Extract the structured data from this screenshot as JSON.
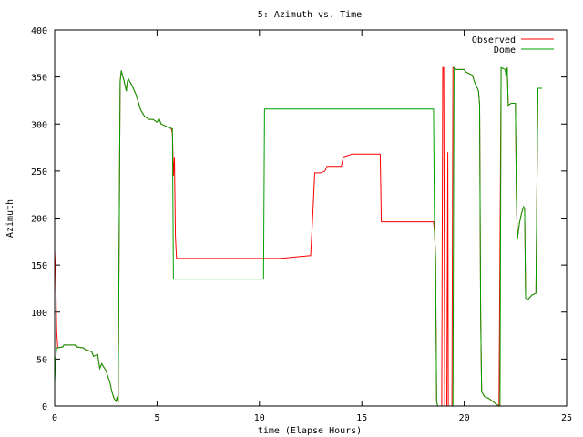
{
  "chart_data": {
    "type": "line",
    "title": "5: Azimuth vs. Time",
    "xlabel": "time (Elapse Hours)",
    "ylabel": "Azimuth",
    "xlim": [
      0,
      25
    ],
    "ylim": [
      0,
      400
    ],
    "xticks": [
      0,
      5,
      10,
      15,
      20,
      25
    ],
    "yticks": [
      0,
      50,
      100,
      150,
      200,
      250,
      300,
      350,
      400
    ],
    "grid": false,
    "legend_position": "top-right",
    "series": [
      {
        "name": "Observed",
        "color": "#ff0000",
        "points": [
          [
            0.0,
            165
          ],
          [
            0.05,
            140
          ],
          [
            0.1,
            80
          ],
          [
            0.15,
            62
          ],
          [
            0.4,
            63
          ],
          [
            0.45,
            65
          ],
          [
            1.0,
            65
          ],
          [
            1.05,
            63
          ],
          [
            1.4,
            62
          ],
          [
            1.5,
            60
          ],
          [
            1.8,
            58
          ],
          [
            1.9,
            53
          ],
          [
            2.1,
            55
          ],
          [
            2.2,
            40
          ],
          [
            2.3,
            45
          ],
          [
            2.5,
            38
          ],
          [
            2.7,
            25
          ],
          [
            2.8,
            15
          ],
          [
            2.9,
            8
          ],
          [
            3.0,
            5
          ],
          [
            3.05,
            10
          ],
          [
            3.1,
            3
          ],
          [
            3.2,
            345
          ],
          [
            3.25,
            357
          ],
          [
            3.4,
            345
          ],
          [
            3.5,
            335
          ],
          [
            3.55,
            345
          ],
          [
            3.6,
            348
          ],
          [
            3.8,
            340
          ],
          [
            4.0,
            330
          ],
          [
            4.2,
            315
          ],
          [
            4.4,
            308
          ],
          [
            4.6,
            305
          ],
          [
            4.8,
            305
          ],
          [
            5.0,
            302
          ],
          [
            5.1,
            306
          ],
          [
            5.2,
            300
          ],
          [
            5.4,
            298
          ],
          [
            5.6,
            296
          ],
          [
            5.7,
            295
          ],
          [
            5.75,
            290
          ],
          [
            5.8,
            245
          ],
          [
            5.85,
            265
          ],
          [
            5.9,
            180
          ],
          [
            5.95,
            157
          ],
          [
            8.0,
            157
          ],
          [
            10.0,
            157
          ],
          [
            11.0,
            157
          ],
          [
            11.5,
            158
          ],
          [
            12.0,
            159
          ],
          [
            12.5,
            160
          ],
          [
            12.6,
            200
          ],
          [
            12.7,
            248
          ],
          [
            13.0,
            248
          ],
          [
            13.2,
            250
          ],
          [
            13.3,
            255
          ],
          [
            14.0,
            255
          ],
          [
            14.1,
            265
          ],
          [
            14.4,
            267
          ],
          [
            14.5,
            268
          ],
          [
            15.5,
            268
          ],
          [
            15.9,
            268
          ],
          [
            15.95,
            196
          ],
          [
            18.0,
            196
          ],
          [
            18.5,
            196
          ],
          [
            18.55,
            185
          ],
          [
            18.6,
            160
          ],
          [
            18.65,
            5
          ],
          [
            18.7,
            0
          ],
          [
            18.9,
            0
          ],
          [
            18.95,
            360
          ],
          [
            19.0,
            360
          ],
          [
            19.05,
            0
          ],
          [
            19.15,
            0
          ],
          [
            19.2,
            270
          ],
          [
            19.22,
            0
          ],
          [
            19.4,
            0
          ],
          [
            19.45,
            360
          ],
          [
            19.5,
            360
          ],
          [
            19.6,
            358
          ],
          [
            20.0,
            358
          ],
          [
            20.1,
            355
          ],
          [
            20.4,
            352
          ],
          [
            20.5,
            345
          ],
          [
            20.6,
            340
          ],
          [
            20.7,
            335
          ],
          [
            20.75,
            320
          ],
          [
            20.8,
            100
          ],
          [
            20.85,
            15
          ],
          [
            21.0,
            10
          ],
          [
            21.2,
            8
          ],
          [
            21.5,
            3
          ],
          [
            21.7,
            0
          ],
          [
            21.8,
            360
          ],
          [
            22.0,
            358
          ],
          [
            22.05,
            350
          ],
          [
            22.1,
            360
          ],
          [
            22.15,
            320
          ],
          [
            22.3,
            322
          ],
          [
            22.5,
            322
          ],
          [
            22.55,
            220
          ],
          [
            22.6,
            178
          ],
          [
            22.7,
            195
          ],
          [
            22.8,
            205
          ],
          [
            22.9,
            212
          ],
          [
            22.95,
            210
          ],
          [
            23.0,
            115
          ],
          [
            23.1,
            113
          ],
          [
            23.3,
            118
          ],
          [
            23.5,
            120
          ],
          [
            23.55,
            230
          ],
          [
            23.6,
            338
          ],
          [
            23.8,
            338
          ]
        ]
      },
      {
        "name": "Dome",
        "color": "#00a000",
        "points": [
          [
            0.0,
            25
          ],
          [
            0.05,
            50
          ],
          [
            0.1,
            62
          ],
          [
            0.4,
            63
          ],
          [
            0.45,
            65
          ],
          [
            1.0,
            65
          ],
          [
            1.05,
            63
          ],
          [
            1.4,
            62
          ],
          [
            1.5,
            60
          ],
          [
            1.8,
            58
          ],
          [
            1.9,
            53
          ],
          [
            2.1,
            55
          ],
          [
            2.2,
            40
          ],
          [
            2.3,
            45
          ],
          [
            2.5,
            38
          ],
          [
            2.7,
            25
          ],
          [
            2.8,
            15
          ],
          [
            2.9,
            8
          ],
          [
            3.0,
            5
          ],
          [
            3.05,
            10
          ],
          [
            3.1,
            3
          ],
          [
            3.2,
            345
          ],
          [
            3.25,
            357
          ],
          [
            3.4,
            345
          ],
          [
            3.5,
            335
          ],
          [
            3.55,
            345
          ],
          [
            3.6,
            348
          ],
          [
            3.8,
            340
          ],
          [
            4.0,
            330
          ],
          [
            4.2,
            315
          ],
          [
            4.4,
            308
          ],
          [
            4.6,
            305
          ],
          [
            4.8,
            305
          ],
          [
            5.0,
            302
          ],
          [
            5.1,
            306
          ],
          [
            5.2,
            300
          ],
          [
            5.4,
            298
          ],
          [
            5.6,
            296
          ],
          [
            5.75,
            295
          ],
          [
            5.8,
            135
          ],
          [
            10.2,
            135
          ],
          [
            10.25,
            316
          ],
          [
            18.5,
            316
          ],
          [
            18.55,
            185
          ],
          [
            18.6,
            160
          ],
          [
            18.65,
            5
          ],
          [
            18.7,
            0
          ],
          [
            19.1,
            0
          ],
          [
            19.15,
            0
          ],
          [
            19.35,
            0
          ],
          [
            19.4,
            0
          ],
          [
            19.45,
            0
          ],
          [
            19.5,
            360
          ],
          [
            19.6,
            358
          ],
          [
            20.0,
            358
          ],
          [
            20.1,
            355
          ],
          [
            20.4,
            352
          ],
          [
            20.5,
            345
          ],
          [
            20.6,
            340
          ],
          [
            20.7,
            335
          ],
          [
            20.75,
            320
          ],
          [
            20.8,
            100
          ],
          [
            20.85,
            15
          ],
          [
            21.0,
            10
          ],
          [
            21.2,
            8
          ],
          [
            21.5,
            3
          ],
          [
            21.7,
            0
          ],
          [
            21.75,
            0
          ],
          [
            21.8,
            360
          ],
          [
            22.0,
            358
          ],
          [
            22.05,
            350
          ],
          [
            22.1,
            360
          ],
          [
            22.15,
            320
          ],
          [
            22.3,
            322
          ],
          [
            22.5,
            322
          ],
          [
            22.55,
            220
          ],
          [
            22.6,
            178
          ],
          [
            22.7,
            195
          ],
          [
            22.8,
            205
          ],
          [
            22.9,
            212
          ],
          [
            22.95,
            210
          ],
          [
            23.0,
            115
          ],
          [
            23.1,
            113
          ],
          [
            23.3,
            118
          ],
          [
            23.5,
            120
          ],
          [
            23.55,
            230
          ],
          [
            23.6,
            338
          ],
          [
            23.8,
            338
          ]
        ]
      }
    ]
  }
}
